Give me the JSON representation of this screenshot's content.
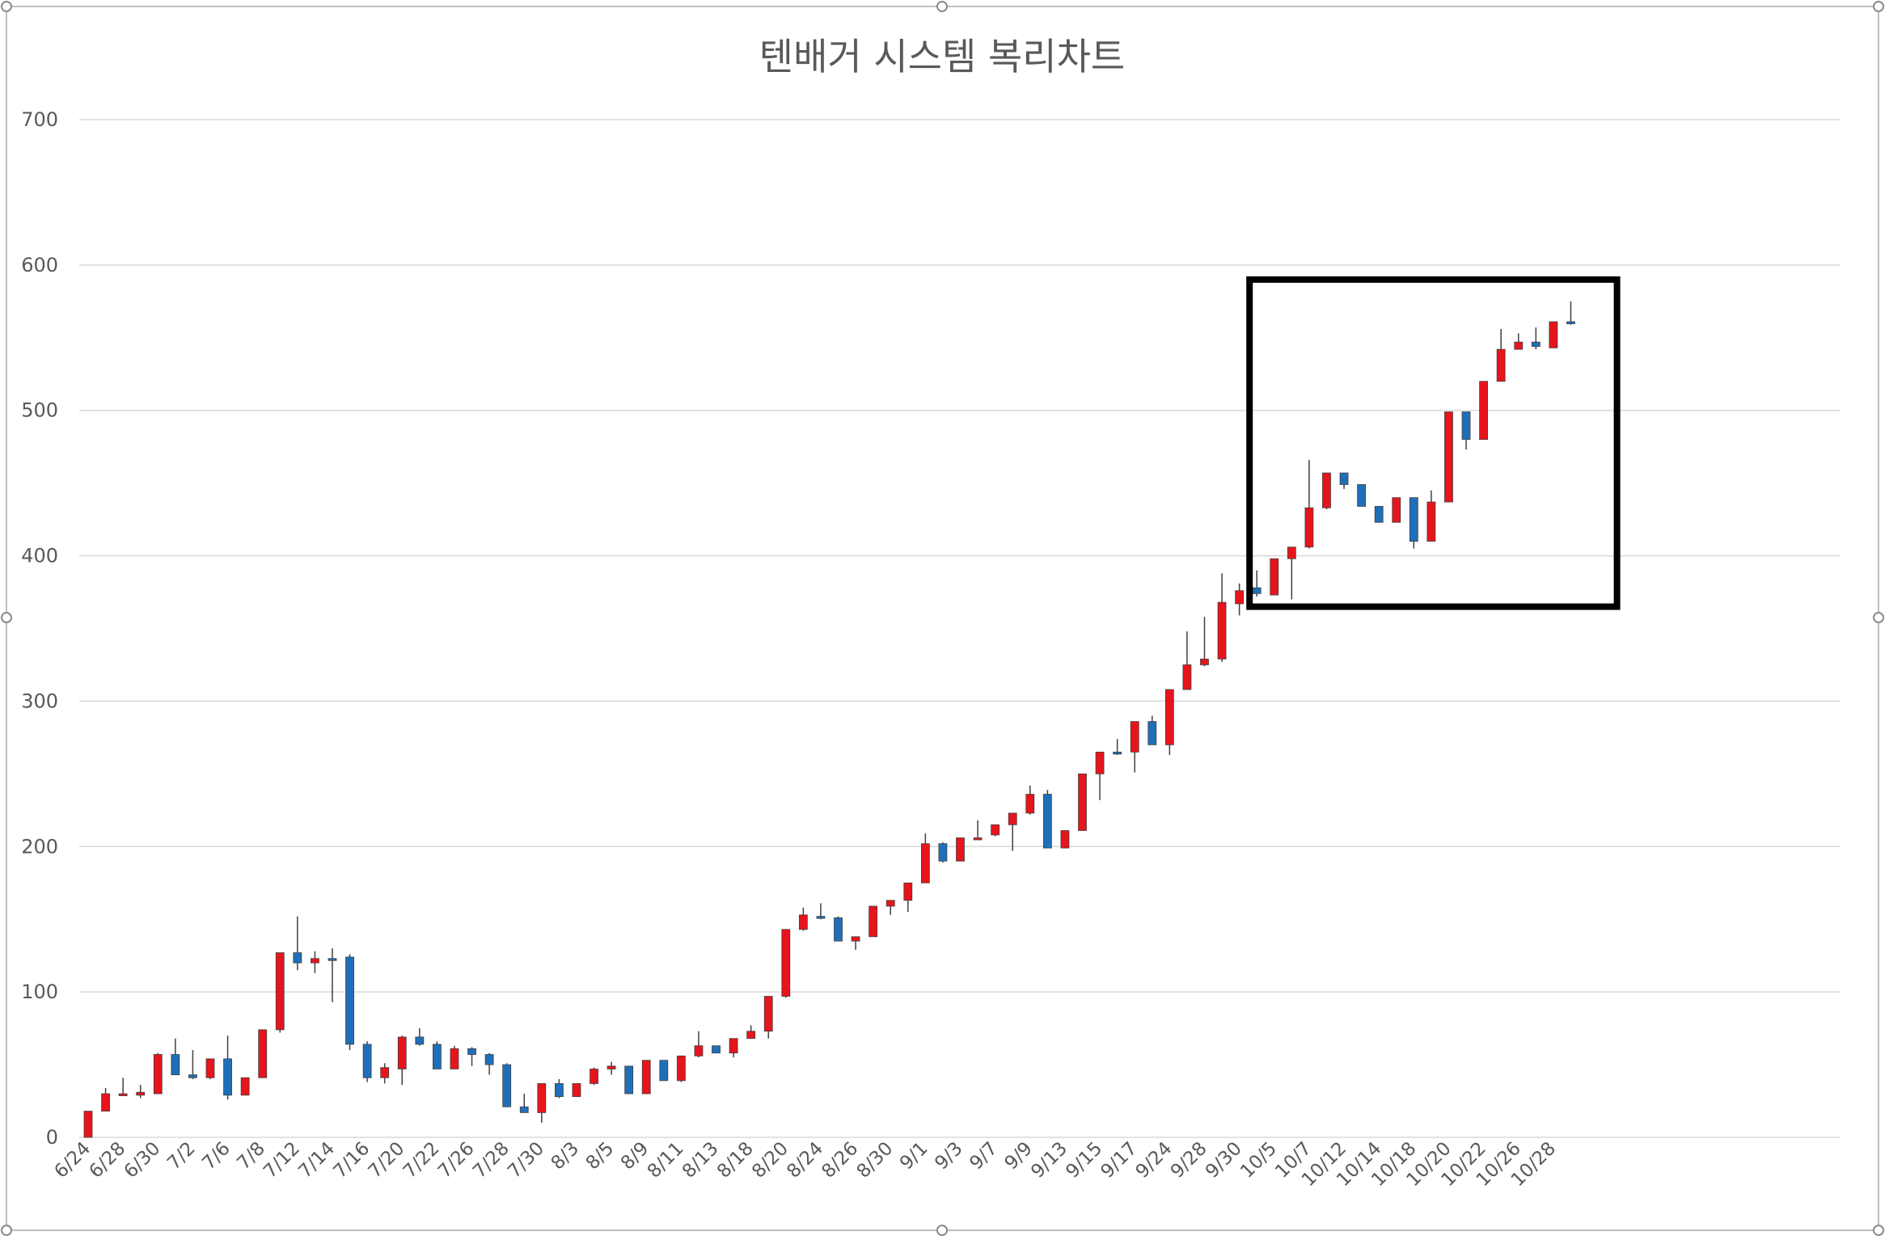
{
  "chart_data": {
    "type": "candlestick",
    "title": "텐배거 시스템 복리차트",
    "xlabel": "",
    "ylabel": "",
    "ylim": [
      0,
      700
    ],
    "yticks": [
      0,
      100,
      200,
      300,
      400,
      500,
      600,
      700
    ],
    "grid": true,
    "legend": "none",
    "colors": {
      "up": "#e8141c",
      "down": "#1f6fb8",
      "wick": "#404040",
      "grid": "#d9d9d9",
      "highlight": "#000000",
      "text": "#595959"
    },
    "xtick_labels": [
      "6/24",
      "6/28",
      "6/30",
      "7/2",
      "7/6",
      "7/8",
      "7/12",
      "7/14",
      "7/16",
      "7/20",
      "7/22",
      "7/26",
      "7/28",
      "7/30",
      "8/3",
      "8/5",
      "8/9",
      "8/11",
      "8/13",
      "8/18",
      "8/20",
      "8/24",
      "8/26",
      "8/30",
      "9/1",
      "9/3",
      "9/7",
      "9/9",
      "9/13",
      "9/15",
      "9/17",
      "9/24",
      "9/28",
      "9/30",
      "10/5",
      "10/7",
      "10/12",
      "10/14",
      "10/18",
      "10/20",
      "10/22",
      "10/26",
      "10/28"
    ],
    "highlight_box": {
      "x_from": 67,
      "x_to": 87,
      "y_from": 365,
      "y_to": 590
    },
    "candles": [
      [
        0,
        18,
        0,
        18
      ],
      [
        18,
        34,
        18,
        30
      ],
      [
        30,
        41,
        29,
        30
      ],
      [
        29,
        36,
        27,
        31
      ],
      [
        30,
        58,
        30,
        57
      ],
      [
        57,
        68,
        43,
        43
      ],
      [
        43,
        60,
        40,
        41
      ],
      [
        41,
        54,
        40,
        54
      ],
      [
        54,
        70,
        26,
        29
      ],
      [
        29,
        41,
        29,
        41
      ],
      [
        41,
        74,
        41,
        74
      ],
      [
        74,
        127,
        72,
        127
      ],
      [
        127,
        152,
        115,
        120
      ],
      [
        120,
        128,
        113,
        123
      ],
      [
        123,
        130,
        93,
        122
      ],
      [
        124,
        126,
        60,
        64
      ],
      [
        64,
        66,
        38,
        41
      ],
      [
        41,
        51,
        37,
        48
      ],
      [
        47,
        70,
        36,
        69
      ],
      [
        69,
        75,
        63,
        64
      ],
      [
        64,
        66,
        47,
        47
      ],
      [
        47,
        63,
        47,
        61
      ],
      [
        61,
        62,
        49,
        57
      ],
      [
        57,
        58,
        43,
        50
      ],
      [
        50,
        51,
        21,
        21
      ],
      [
        21,
        30,
        18,
        17
      ],
      [
        17,
        37,
        10,
        37
      ],
      [
        37,
        40,
        27,
        28
      ],
      [
        28,
        37,
        28,
        37
      ],
      [
        37,
        48,
        36,
        47
      ],
      [
        47,
        52,
        43,
        49
      ],
      [
        49,
        49,
        30,
        30
      ],
      [
        30,
        53,
        30,
        53
      ],
      [
        53,
        53,
        39,
        39
      ],
      [
        39,
        56,
        38,
        56
      ],
      [
        56,
        73,
        55,
        63
      ],
      [
        63,
        63,
        58,
        58
      ],
      [
        58,
        68,
        55,
        68
      ],
      [
        68,
        77,
        68,
        73
      ],
      [
        73,
        97,
        68,
        97
      ],
      [
        97,
        143,
        96,
        143
      ],
      [
        143,
        158,
        142,
        153
      ],
      [
        152,
        161,
        150,
        151
      ],
      [
        151,
        152,
        135,
        135
      ],
      [
        135,
        138,
        129,
        138
      ],
      [
        138,
        159,
        138,
        159
      ],
      [
        159,
        163,
        153,
        163
      ],
      [
        163,
        175,
        155,
        175
      ],
      [
        175,
        209,
        175,
        202
      ],
      [
        202,
        203,
        189,
        190
      ],
      [
        190,
        206,
        190,
        206
      ],
      [
        206,
        218,
        205,
        206
      ],
      [
        208,
        215,
        207,
        215
      ],
      [
        215,
        223,
        197,
        223
      ],
      [
        223,
        242,
        222,
        236
      ],
      [
        236,
        239,
        199,
        199
      ],
      [
        199,
        211,
        199,
        211
      ],
      [
        211,
        250,
        211,
        250
      ],
      [
        250,
        265,
        232,
        265
      ],
      [
        265,
        274,
        263,
        264
      ],
      [
        265,
        286,
        251,
        286
      ],
      [
        286,
        290,
        270,
        270
      ],
      [
        270,
        308,
        263,
        308
      ],
      [
        308,
        348,
        308,
        325
      ],
      [
        325,
        358,
        324,
        329
      ],
      [
        329,
        388,
        327,
        368
      ],
      [
        367,
        381,
        359,
        376
      ],
      [
        378,
        390,
        372,
        374
      ],
      [
        373,
        398,
        373,
        398
      ],
      [
        398,
        406,
        370,
        406
      ],
      [
        406,
        466,
        405,
        433
      ],
      [
        433,
        457,
        432,
        457
      ],
      [
        457,
        457,
        446,
        449
      ],
      [
        449,
        449,
        434,
        434
      ],
      [
        434,
        434,
        423,
        423
      ],
      [
        423,
        440,
        423,
        440
      ],
      [
        440,
        440,
        405,
        410
      ],
      [
        410,
        445,
        410,
        437
      ],
      [
        437,
        499,
        437,
        499
      ],
      [
        499,
        499,
        473,
        480
      ],
      [
        480,
        520,
        480,
        520
      ],
      [
        520,
        556,
        520,
        542
      ],
      [
        542,
        553,
        542,
        547
      ],
      [
        547,
        557,
        542,
        544
      ],
      [
        543,
        561,
        543,
        561
      ],
      [
        561,
        575,
        559,
        560
      ]
    ]
  }
}
